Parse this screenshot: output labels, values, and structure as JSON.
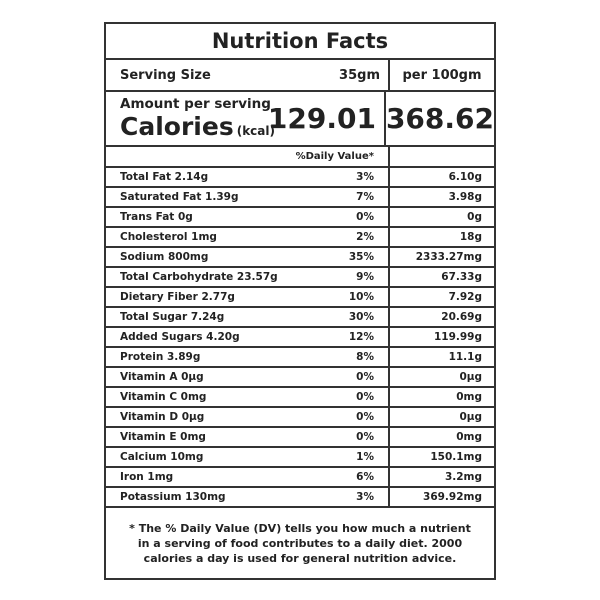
{
  "title": "Nutrition Facts",
  "serving": {
    "label": "Serving Size",
    "value": "35gm",
    "per_label": "per 100gm"
  },
  "calories": {
    "amount_label": "Amount per serving",
    "label": "Calories",
    "unit": "(kcal)",
    "per_serving": "129.01",
    "per_100g": "368.62"
  },
  "daily_value_header": "%Daily Value*",
  "nutrients": [
    {
      "name": "Total Fat  2.14g",
      "dv": "3%",
      "per100": "6.10g"
    },
    {
      "name": "Saturated Fat 1.39g",
      "dv": "7%",
      "per100": "3.98g"
    },
    {
      "name": "Trans Fat 0g",
      "dv": "0%",
      "per100": "0g"
    },
    {
      "name": "Cholesterol 1mg",
      "dv": "2%",
      "per100": "18g"
    },
    {
      "name": "Sodium 800mg",
      "dv": "35%",
      "per100": "2333.27mg"
    },
    {
      "name": "Total Carbohydrate 23.57g",
      "dv": "9%",
      "per100": "67.33g"
    },
    {
      "name": "Dietary Fiber  2.77g",
      "dv": "10%",
      "per100": "7.92g"
    },
    {
      "name": "Total Sugar  7.24g",
      "dv": "30%",
      "per100": "20.69g"
    },
    {
      "name": "Added Sugars  4.20g",
      "dv": "12%",
      "per100": "119.99g"
    },
    {
      "name": "Protein  3.89g",
      "dv": "8%",
      "per100": "11.1g"
    },
    {
      "name": "Vitamin A  0µg",
      "dv": "0%",
      "per100": "0µg"
    },
    {
      "name": "Vitamin C 0mg",
      "dv": "0%",
      "per100": "0mg"
    },
    {
      "name": "Vitamin D 0µg",
      "dv": "0%",
      "per100": "0µg"
    },
    {
      "name": "Vitamin E 0mg",
      "dv": "0%",
      "per100": "0mg"
    },
    {
      "name": "Calcium 10mg",
      "dv": "1%",
      "per100": "150.1mg"
    },
    {
      "name": "Iron 1mg",
      "dv": "6%",
      "per100": "3.2mg"
    },
    {
      "name": "Potassium 130mg",
      "dv": "3%",
      "per100": "369.92mg"
    }
  ],
  "footnote": "* The % Daily Value (DV) tells you how much a nutrient in a serving of food contributes to a daily diet. 2000 calories a day is used for general nutrition advice."
}
